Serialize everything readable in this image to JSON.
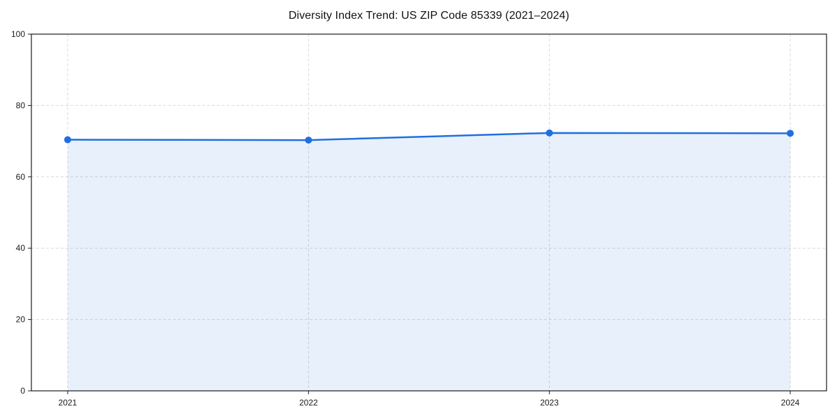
{
  "chart_data": {
    "type": "line",
    "title": "Diversity Index Trend: US ZIP Code 85339 (2021–2024)",
    "categories": [
      "2021",
      "2022",
      "2023",
      "2024"
    ],
    "series": [
      {
        "name": "Diversity Index",
        "values": [
          70.4,
          70.3,
          72.3,
          72.2
        ]
      }
    ],
    "xlabel": "",
    "ylabel": "",
    "ylim": [
      0,
      100
    ],
    "yticks": [
      0,
      20,
      40,
      60,
      80,
      100
    ],
    "grid": "dashed, horizontal and vertical",
    "legend": "none",
    "marker": "circle",
    "area_fill": true,
    "colors": {
      "line": "#1f6fe0",
      "marker": "#1f6fe0",
      "area_fill": "rgba(31, 111, 224, 0.10)",
      "grid": "#d9d9d9",
      "spine": "#1a1a1a",
      "tick_label": "#1a1a1a",
      "title": "#111111",
      "background": "#ffffff"
    }
  }
}
